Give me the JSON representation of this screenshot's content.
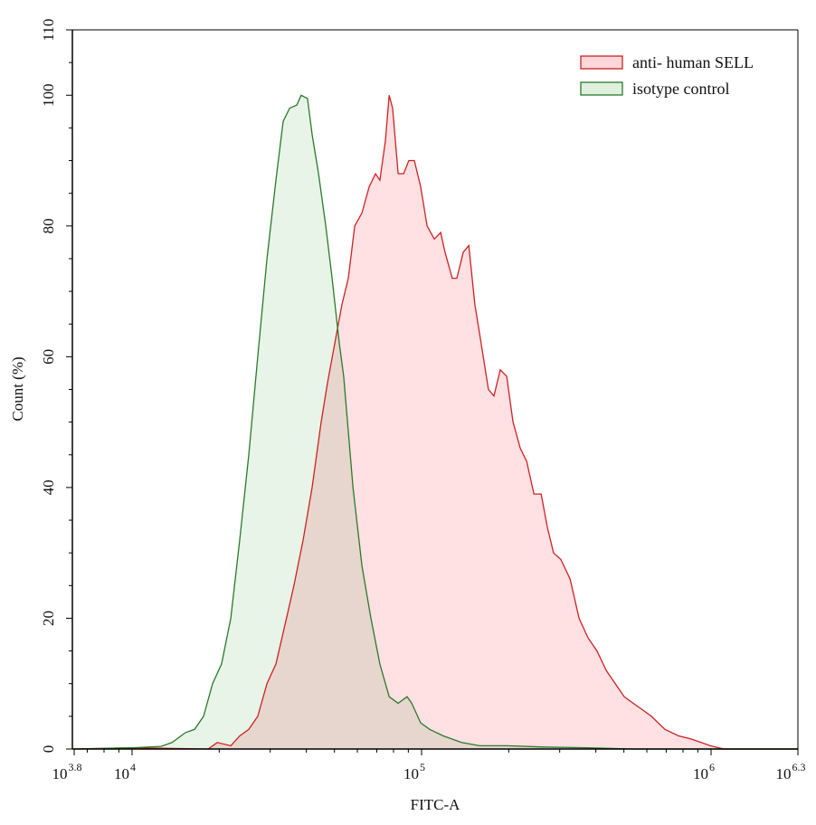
{
  "chart_data": {
    "type": "area",
    "title": "",
    "xlabel": "FITC-A",
    "ylabel": "Count  (%)",
    "x_scale": "log10",
    "xlim_log10": [
      3.8,
      6.3
    ],
    "ylim": [
      0,
      110
    ],
    "x_ticks": [
      {
        "log": 3.8,
        "base": "10",
        "exp": "3.8"
      },
      {
        "log": 4,
        "base": "10",
        "exp": "4"
      },
      {
        "log": 5,
        "base": "10",
        "exp": "5"
      },
      {
        "log": 6,
        "base": "10",
        "exp": "6"
      },
      {
        "log": 6.3,
        "base": "10",
        "exp": "6.3"
      }
    ],
    "y_ticks": [
      0,
      20,
      40,
      60,
      80,
      100,
      110
    ],
    "legend_position": "top-right",
    "series": [
      {
        "name": "anti- human SELL",
        "stroke": "#cc2222",
        "fill": "#ffd6d9",
        "x_log10": [
          3.8,
          4.0,
          4.263,
          4.294,
          4.341,
          4.372,
          4.403,
          4.434,
          4.466,
          4.497,
          4.528,
          4.559,
          4.591,
          4.622,
          4.653,
          4.675,
          4.7,
          4.725,
          4.747,
          4.769,
          4.794,
          4.819,
          4.841,
          4.856,
          4.875,
          4.888,
          4.9,
          4.919,
          4.938,
          4.956,
          4.975,
          4.997,
          5.019,
          5.044,
          5.066,
          5.081,
          5.106,
          5.122,
          5.144,
          5.163,
          5.184,
          5.206,
          5.231,
          5.25,
          5.272,
          5.294,
          5.316,
          5.341,
          5.363,
          5.388,
          5.413,
          5.434,
          5.456,
          5.481,
          5.513,
          5.544,
          5.575,
          5.606,
          5.638,
          5.669,
          5.7,
          5.731,
          5.763,
          5.794,
          5.841,
          5.888,
          5.934,
          5.966,
          5.997,
          6.044,
          6.3
        ],
        "y": [
          0,
          0.2,
          0,
          1,
          0.5,
          2,
          3,
          5,
          10,
          13,
          19,
          25,
          32,
          40,
          50,
          56,
          62,
          68,
          72,
          80,
          82,
          86,
          88,
          87,
          93,
          100,
          98,
          88,
          88,
          90,
          90,
          86,
          80,
          78,
          79,
          76,
          72,
          72,
          76,
          77,
          68,
          62,
          55,
          54,
          58,
          57,
          50,
          46,
          44,
          39,
          39,
          34,
          30,
          29,
          26,
          20,
          17,
          15,
          12,
          10,
          8,
          7,
          6,
          5,
          3,
          2,
          1.5,
          1,
          0.5,
          0,
          0
        ]
      },
      {
        "name": "isotype control",
        "stroke": "#2a7a2a",
        "fill": "#dff0df",
        "x_log10": [
          3.8,
          4.0,
          4.1,
          4.138,
          4.184,
          4.216,
          4.247,
          4.278,
          4.309,
          4.341,
          4.372,
          4.403,
          4.434,
          4.466,
          4.497,
          4.522,
          4.544,
          4.569,
          4.584,
          4.606,
          4.622,
          4.644,
          4.669,
          4.691,
          4.716,
          4.731,
          4.763,
          4.794,
          4.825,
          4.856,
          4.888,
          4.919,
          4.95,
          4.966,
          4.997,
          5.028,
          5.075,
          5.138,
          5.2,
          5.294,
          5.419,
          5.575,
          5.731,
          6.3
        ],
        "y": [
          0,
          0.2,
          0.4,
          1,
          2.5,
          3,
          5,
          10,
          13,
          20,
          32,
          45,
          60,
          75,
          87,
          96,
          98,
          98.5,
          100,
          99.5,
          94,
          88,
          80,
          72,
          62,
          57,
          40,
          28,
          20,
          13,
          8,
          7,
          8,
          7,
          4,
          3,
          2,
          1,
          0.5,
          0.5,
          0.3,
          0.2,
          0,
          0
        ]
      }
    ]
  }
}
